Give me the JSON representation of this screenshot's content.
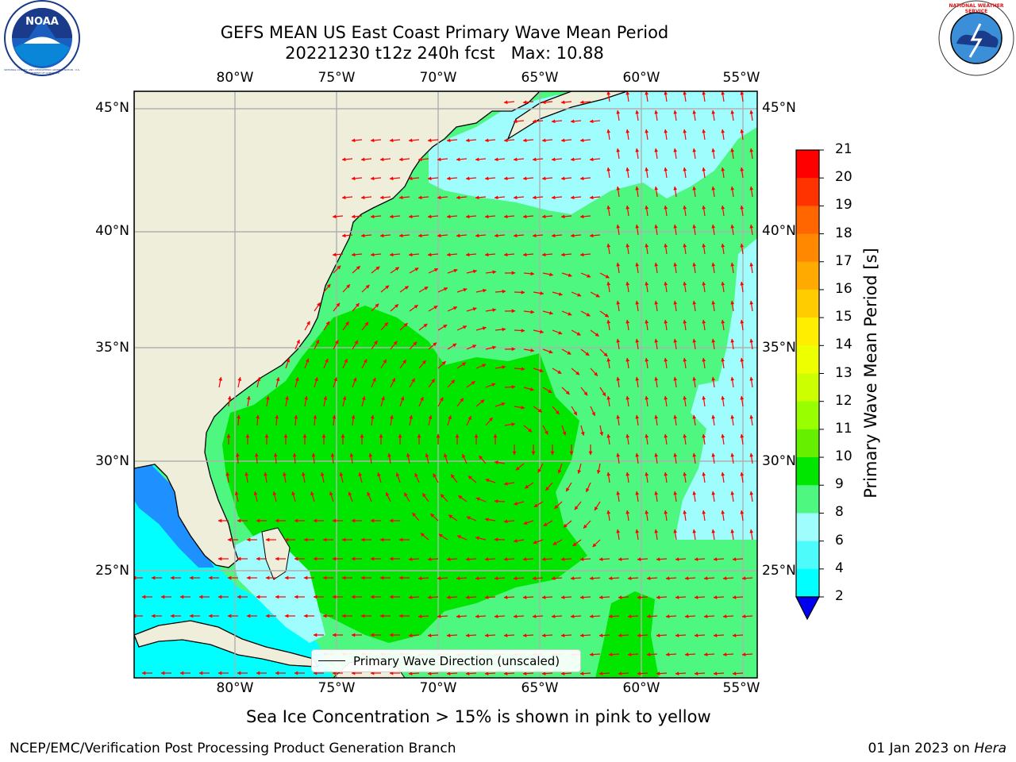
{
  "header": {
    "title_line1": "GEFS MEAN US East Coast Primary Wave Mean Period",
    "title_line2": "20221230 t12z 240h fcst   Max: 10.88",
    "noaa_logo_text": "NOAA",
    "noaa_ring_text": "NATIONAL OCEANIC AND ATMOSPHERIC ADMINISTRATION · U.S. DEPARTMENT OF COMMERCE",
    "nws_ring_text": "NATIONAL WEATHER SERVICE"
  },
  "map": {
    "lon_labels": [
      "80°W",
      "75°W",
      "70°W",
      "65°W",
      "60°W",
      "55°W"
    ],
    "lat_labels": [
      "45°N",
      "40°N",
      "35°N",
      "30°N",
      "25°N"
    ],
    "legend_label": "Primary Wave Direction (unscaled)",
    "colors": {
      "land": "#efeedb",
      "ocean_light": "#9ffdfd",
      "ocean_mid": "#4df780",
      "ocean_high": "#00e600",
      "ocean_low": "#00ffff",
      "ocean_vlow": "#1e90ff",
      "arrow": "#ff0000"
    }
  },
  "colorbar": {
    "label": "Primary Wave Mean Period [s]",
    "ticks": [
      "21",
      "20",
      "19",
      "18",
      "17",
      "16",
      "15",
      "14",
      "13",
      "12",
      "11",
      "10",
      "9",
      "8",
      "6",
      "4",
      "2"
    ],
    "colors": [
      "#ff0000",
      "#ff3300",
      "#ff6600",
      "#ff8800",
      "#ffaa00",
      "#ffcc00",
      "#ffee00",
      "#eeff00",
      "#ccff00",
      "#99ff00",
      "#66f000",
      "#00e600",
      "#4df780",
      "#9ffdfd",
      "#4dfbfb",
      "#00ffff",
      "#0080ff"
    ],
    "extend_color": "#0000ee"
  },
  "footer": {
    "note": "Sea Ice Concentration > 15% is shown in pink to yellow",
    "credit": "NCEP/EMC/Verification Post Processing Product Generation Branch",
    "date": "01 Jan 2023 on ",
    "machine": "Hera"
  }
}
